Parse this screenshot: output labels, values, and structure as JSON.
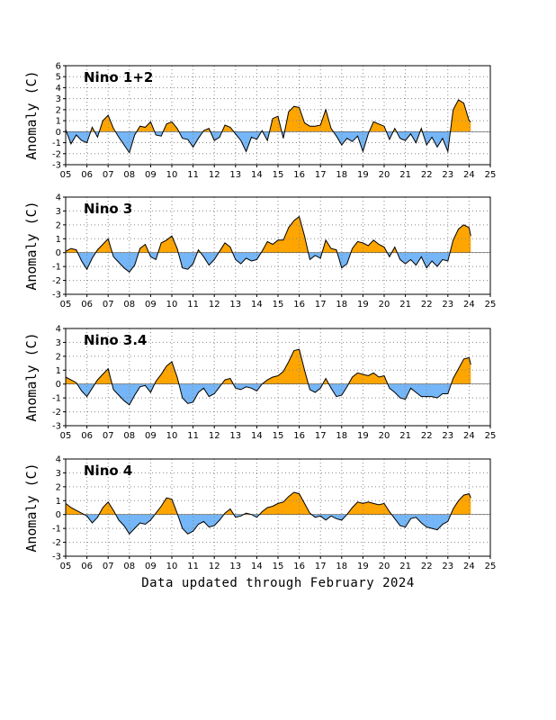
{
  "footnote": "Data updated through February 2024",
  "colors": {
    "positive": "#FFA500",
    "negative": "#74B6F7",
    "line": "#000000",
    "grid": "#888888"
  },
  "chart_data": [
    {
      "type": "area",
      "title": "Nino 1+2",
      "ylabel": "Anomaly (C)",
      "xlim": [
        2005,
        2025
      ],
      "ylim": [
        -3,
        6
      ],
      "x_tick_labels": [
        "05",
        "06",
        "07",
        "08",
        "09",
        "10",
        "11",
        "12",
        "13",
        "14",
        "15",
        "16",
        "17",
        "18",
        "19",
        "20",
        "21",
        "22",
        "23",
        "24",
        "25"
      ],
      "y_tick_labels": [
        "-3",
        "-2",
        "-1",
        "0",
        "1",
        "2",
        "3",
        "4",
        "5",
        "6"
      ],
      "grid": true,
      "series": [
        {
          "x": [
            2005.0,
            2005.25,
            2005.5,
            2005.75,
            2006.0,
            2006.25,
            2006.5,
            2006.75,
            2007.0,
            2007.25,
            2007.5,
            2007.75,
            2008.0,
            2008.25,
            2008.5,
            2008.75,
            2009.0,
            2009.25,
            2009.5,
            2009.75,
            2010.0,
            2010.25,
            2010.5,
            2010.75,
            2011.0,
            2011.25,
            2011.5,
            2011.75,
            2012.0,
            2012.25,
            2012.5,
            2012.75,
            2013.0,
            2013.25,
            2013.5,
            2013.75,
            2014.0,
            2014.25,
            2014.5,
            2014.75,
            2015.0,
            2015.25,
            2015.5,
            2015.75,
            2016.0,
            2016.25,
            2016.5,
            2016.75,
            2017.0,
            2017.25,
            2017.5,
            2017.75,
            2018.0,
            2018.25,
            2018.5,
            2018.75,
            2019.0,
            2019.25,
            2019.5,
            2019.75,
            2020.0,
            2020.25,
            2020.5,
            2020.75,
            2021.0,
            2021.25,
            2021.5,
            2021.75,
            2022.0,
            2022.25,
            2022.5,
            2022.75,
            2023.0,
            2023.25,
            2023.5,
            2023.75,
            2024.0,
            2024.08
          ],
          "y": [
            0.2,
            -1.1,
            -0.3,
            -0.8,
            -1.0,
            0.4,
            -0.5,
            1.0,
            1.5,
            0.3,
            -0.5,
            -1.2,
            -1.9,
            -0.3,
            0.5,
            0.4,
            0.9,
            -0.3,
            -0.4,
            0.7,
            0.9,
            0.3,
            -0.6,
            -0.7,
            -1.4,
            -0.6,
            0.1,
            0.3,
            -0.8,
            -0.5,
            0.6,
            0.4,
            -0.2,
            -0.8,
            -1.8,
            -0.5,
            -0.7,
            0.1,
            -0.8,
            1.2,
            1.4,
            -0.6,
            1.8,
            2.3,
            2.2,
            0.8,
            0.5,
            0.5,
            0.6,
            2.0,
            0.3,
            -0.4,
            -1.2,
            -0.6,
            -0.9,
            -0.4,
            -1.8,
            -0.2,
            0.9,
            0.7,
            0.5,
            -0.7,
            0.3,
            -0.6,
            -0.8,
            -0.2,
            -1.0,
            0.3,
            -1.2,
            -0.5,
            -1.4,
            -0.6,
            -1.8,
            2.0,
            2.9,
            2.6,
            1.0,
            0.9
          ]
        }
      ]
    },
    {
      "type": "area",
      "title": "Nino 3",
      "ylabel": "Anomaly (C)",
      "xlim": [
        2005,
        2025
      ],
      "ylim": [
        -3,
        4
      ],
      "x_tick_labels": [
        "05",
        "06",
        "07",
        "08",
        "09",
        "10",
        "11",
        "12",
        "13",
        "14",
        "15",
        "16",
        "17",
        "18",
        "19",
        "20",
        "21",
        "22",
        "23",
        "24",
        "25"
      ],
      "y_tick_labels": [
        "-3",
        "-2",
        "-1",
        "0",
        "1",
        "2",
        "3",
        "4"
      ],
      "grid": true,
      "series": [
        {
          "x": [
            2005.0,
            2005.25,
            2005.5,
            2005.75,
            2006.0,
            2006.25,
            2006.5,
            2006.75,
            2007.0,
            2007.25,
            2007.5,
            2007.75,
            2008.0,
            2008.25,
            2008.5,
            2008.75,
            2009.0,
            2009.25,
            2009.5,
            2009.75,
            2010.0,
            2010.25,
            2010.5,
            2010.75,
            2011.0,
            2011.25,
            2011.5,
            2011.75,
            2012.0,
            2012.25,
            2012.5,
            2012.75,
            2013.0,
            2013.25,
            2013.5,
            2013.75,
            2014.0,
            2014.25,
            2014.5,
            2014.75,
            2015.0,
            2015.25,
            2015.5,
            2015.75,
            2016.0,
            2016.25,
            2016.5,
            2016.75,
            2017.0,
            2017.25,
            2017.5,
            2017.75,
            2018.0,
            2018.25,
            2018.5,
            2018.75,
            2019.0,
            2019.25,
            2019.5,
            2019.75,
            2020.0,
            2020.25,
            2020.5,
            2020.75,
            2021.0,
            2021.25,
            2021.5,
            2021.75,
            2022.0,
            2022.25,
            2022.5,
            2022.75,
            2023.0,
            2023.25,
            2023.5,
            2023.75,
            2024.0,
            2024.08
          ],
          "y": [
            0.1,
            0.3,
            0.2,
            -0.6,
            -1.2,
            -0.4,
            0.2,
            0.6,
            1.0,
            -0.3,
            -0.7,
            -1.1,
            -1.4,
            -0.9,
            0.3,
            0.6,
            -0.3,
            -0.5,
            0.7,
            0.9,
            1.2,
            0.3,
            -1.1,
            -1.2,
            -0.8,
            0.2,
            -0.3,
            -0.9,
            -0.5,
            0.1,
            0.7,
            0.4,
            -0.5,
            -0.8,
            -0.4,
            -0.6,
            -0.5,
            0.1,
            0.8,
            0.6,
            0.9,
            0.9,
            1.8,
            2.3,
            2.6,
            1.2,
            -0.5,
            -0.2,
            -0.4,
            0.9,
            0.3,
            0.2,
            -1.1,
            -0.8,
            0.3,
            0.8,
            0.7,
            0.5,
            0.9,
            0.6,
            0.4,
            -0.3,
            0.4,
            -0.5,
            -0.8,
            -0.5,
            -0.9,
            -0.3,
            -1.1,
            -0.6,
            -1.0,
            -0.5,
            -0.6,
            0.9,
            1.7,
            2.0,
            1.8,
            1.2
          ]
        }
      ]
    },
    {
      "type": "area",
      "title": "Nino 3.4",
      "ylabel": "Anomaly (C)",
      "xlim": [
        2005,
        2025
      ],
      "ylim": [
        -3,
        4
      ],
      "x_tick_labels": [
        "05",
        "06",
        "07",
        "08",
        "09",
        "10",
        "11",
        "12",
        "13",
        "14",
        "15",
        "16",
        "17",
        "18",
        "19",
        "20",
        "21",
        "22",
        "23",
        "24",
        "25"
      ],
      "y_tick_labels": [
        "-3",
        "-2",
        "-1",
        "0",
        "1",
        "2",
        "3",
        "4"
      ],
      "grid": true,
      "series": [
        {
          "x": [
            2005.0,
            2005.25,
            2005.5,
            2005.75,
            2006.0,
            2006.25,
            2006.5,
            2006.75,
            2007.0,
            2007.25,
            2007.5,
            2007.75,
            2008.0,
            2008.25,
            2008.5,
            2008.75,
            2009.0,
            2009.25,
            2009.5,
            2009.75,
            2010.0,
            2010.25,
            2010.5,
            2010.75,
            2011.0,
            2011.25,
            2011.5,
            2011.75,
            2012.0,
            2012.25,
            2012.5,
            2012.75,
            2013.0,
            2013.25,
            2013.5,
            2013.75,
            2014.0,
            2014.25,
            2014.5,
            2014.75,
            2015.0,
            2015.25,
            2015.5,
            2015.75,
            2016.0,
            2016.25,
            2016.5,
            2016.75,
            2017.0,
            2017.25,
            2017.5,
            2017.75,
            2018.0,
            2018.25,
            2018.5,
            2018.75,
            2019.0,
            2019.25,
            2019.5,
            2019.75,
            2020.0,
            2020.25,
            2020.5,
            2020.75,
            2021.0,
            2021.25,
            2021.5,
            2021.75,
            2022.0,
            2022.25,
            2022.5,
            2022.75,
            2023.0,
            2023.25,
            2023.5,
            2023.75,
            2024.0,
            2024.08
          ],
          "y": [
            0.5,
            0.3,
            0.1,
            -0.5,
            -0.9,
            -0.3,
            0.3,
            0.7,
            1.1,
            -0.4,
            -0.8,
            -1.2,
            -1.5,
            -0.8,
            -0.2,
            -0.1,
            -0.6,
            0.2,
            0.7,
            1.3,
            1.6,
            0.5,
            -1.0,
            -1.4,
            -1.3,
            -0.6,
            -0.3,
            -0.9,
            -0.7,
            -0.2,
            0.3,
            0.4,
            -0.3,
            -0.4,
            -0.2,
            -0.3,
            -0.5,
            0.0,
            0.3,
            0.5,
            0.6,
            0.9,
            1.6,
            2.4,
            2.5,
            1.0,
            -0.4,
            -0.6,
            -0.3,
            0.4,
            -0.3,
            -0.9,
            -0.8,
            -0.2,
            0.5,
            0.8,
            0.7,
            0.6,
            0.8,
            0.5,
            0.6,
            -0.3,
            -0.6,
            -1.0,
            -1.1,
            -0.3,
            -0.6,
            -0.9,
            -0.9,
            -0.9,
            -1.0,
            -0.7,
            -0.7,
            0.4,
            1.1,
            1.8,
            1.9,
            1.4
          ]
        }
      ]
    },
    {
      "type": "area",
      "title": "Nino 4",
      "ylabel": "Anomaly (C)",
      "xlim": [
        2005,
        2025
      ],
      "ylim": [
        -3,
        4
      ],
      "x_tick_labels": [
        "05",
        "06",
        "07",
        "08",
        "09",
        "10",
        "11",
        "12",
        "13",
        "14",
        "15",
        "16",
        "17",
        "18",
        "19",
        "20",
        "21",
        "22",
        "23",
        "24",
        "25"
      ],
      "y_tick_labels": [
        "-3",
        "-2",
        "-1",
        "0",
        "1",
        "2",
        "3",
        "4"
      ],
      "grid": true,
      "series": [
        {
          "x": [
            2005.0,
            2005.25,
            2005.5,
            2005.75,
            2006.0,
            2006.25,
            2006.5,
            2006.75,
            2007.0,
            2007.25,
            2007.5,
            2007.75,
            2008.0,
            2008.25,
            2008.5,
            2008.75,
            2009.0,
            2009.25,
            2009.5,
            2009.75,
            2010.0,
            2010.25,
            2010.5,
            2010.75,
            2011.0,
            2011.25,
            2011.5,
            2011.75,
            2012.0,
            2012.25,
            2012.5,
            2012.75,
            2013.0,
            2013.25,
            2013.5,
            2013.75,
            2014.0,
            2014.25,
            2014.5,
            2014.75,
            2015.0,
            2015.25,
            2015.5,
            2015.75,
            2016.0,
            2016.25,
            2016.5,
            2016.75,
            2017.0,
            2017.25,
            2017.5,
            2017.75,
            2018.0,
            2018.25,
            2018.5,
            2018.75,
            2019.0,
            2019.25,
            2019.5,
            2019.75,
            2020.0,
            2020.25,
            2020.5,
            2020.75,
            2021.0,
            2021.25,
            2021.5,
            2021.75,
            2022.0,
            2022.25,
            2022.5,
            2022.75,
            2023.0,
            2023.25,
            2023.5,
            2023.75,
            2024.0,
            2024.08
          ],
          "y": [
            0.8,
            0.5,
            0.3,
            0.1,
            -0.1,
            -0.6,
            -0.2,
            0.5,
            0.9,
            0.3,
            -0.4,
            -0.8,
            -1.4,
            -1.0,
            -0.6,
            -0.7,
            -0.4,
            0.1,
            0.6,
            1.2,
            1.1,
            0.1,
            -1.0,
            -1.4,
            -1.2,
            -0.7,
            -0.5,
            -0.9,
            -0.8,
            -0.4,
            0.1,
            0.4,
            -0.2,
            -0.1,
            0.1,
            0.0,
            -0.2,
            0.2,
            0.5,
            0.6,
            0.8,
            0.9,
            1.3,
            1.6,
            1.5,
            0.8,
            0.1,
            -0.2,
            -0.1,
            -0.4,
            -0.1,
            -0.3,
            -0.4,
            0.0,
            0.5,
            0.9,
            0.8,
            0.9,
            0.8,
            0.7,
            0.8,
            0.2,
            -0.3,
            -0.8,
            -0.9,
            -0.3,
            -0.2,
            -0.6,
            -0.9,
            -1.0,
            -1.1,
            -0.7,
            -0.5,
            0.4,
            1.0,
            1.4,
            1.5,
            1.2
          ]
        }
      ]
    }
  ]
}
